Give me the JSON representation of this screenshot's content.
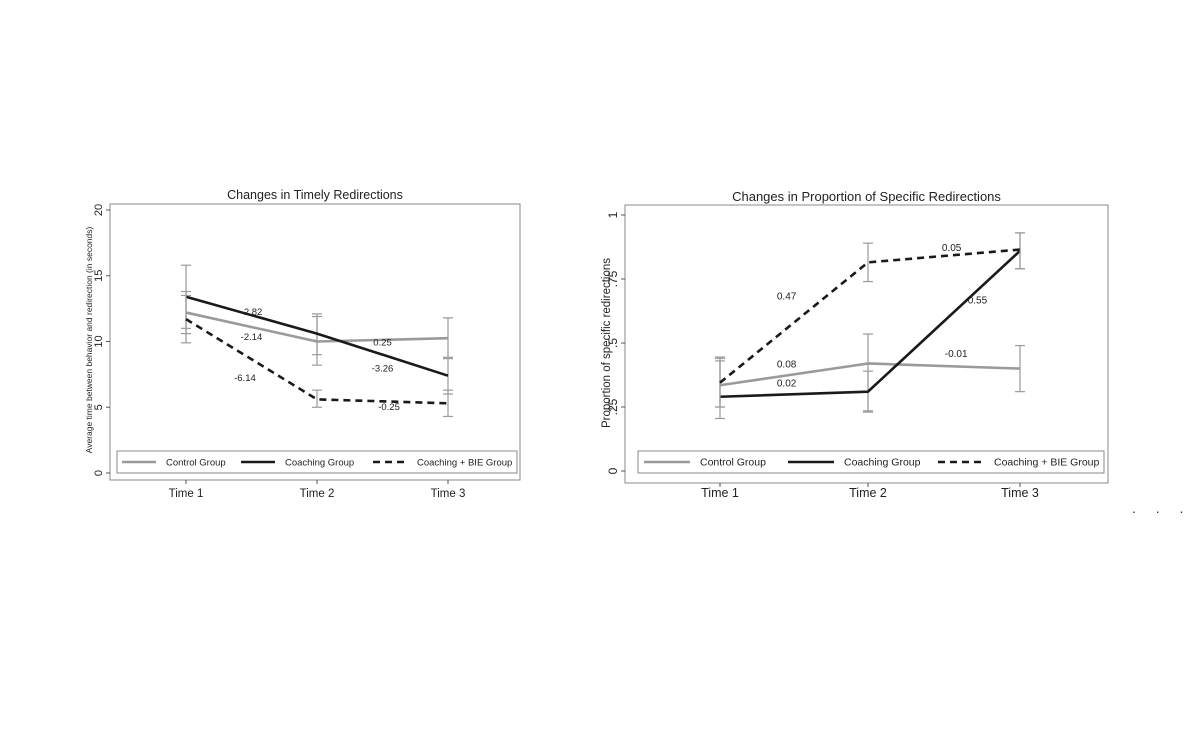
{
  "chart_data": [
    {
      "type": "line",
      "title": "Changes in Timely Redirections",
      "xlabel": "",
      "ylabel": "Average time between behavior and redirection (in seconds)",
      "categories": [
        "Time 1",
        "Time 2",
        "Time 3"
      ],
      "ylim": [
        0,
        20
      ],
      "yticks": [
        0,
        5,
        10,
        15,
        20
      ],
      "ytick_labels": [
        "0",
        "5",
        "10",
        "15",
        "20"
      ],
      "grid": false,
      "legend_position": "bottom",
      "series": [
        {
          "name": "Control Group",
          "values": [
            12.2,
            10.0,
            10.25
          ],
          "err_low": [
            10.6,
            8.2,
            8.7
          ],
          "err_high": [
            13.8,
            11.9,
            11.8
          ],
          "color": "#9a9a9a",
          "style": "solid"
        },
        {
          "name": "Coaching Group",
          "values": [
            13.4,
            10.6,
            7.4
          ],
          "err_low": [
            11.0,
            9.0,
            6.0
          ],
          "err_high": [
            15.8,
            12.1,
            8.8
          ],
          "color": "#1a1a1a",
          "style": "solid"
        },
        {
          "name": "Coaching + BIE Group",
          "values": [
            11.7,
            5.6,
            5.3
          ],
          "err_low": [
            9.9,
            5.0,
            4.3
          ],
          "err_high": [
            13.5,
            6.3,
            6.3
          ],
          "color": "#1a1a1a",
          "style": "dashed"
        }
      ],
      "annotations": [
        {
          "text": "-2.82",
          "x": 1.5,
          "y": 12.0
        },
        {
          "text": "-2.14",
          "x": 1.5,
          "y": 10.1
        },
        {
          "text": "0.25",
          "x": 2.5,
          "y": 9.7
        },
        {
          "text": "-3.26",
          "x": 2.5,
          "y": 7.7
        },
        {
          "text": "-6.14",
          "x": 1.45,
          "y": 7.0
        },
        {
          "text": "-0.25",
          "x": 2.55,
          "y": 4.8
        }
      ]
    },
    {
      "type": "line",
      "title": "Changes in Proportion of Specific Redirections",
      "xlabel": "",
      "ylabel": "Proportion of specific redirections",
      "categories": [
        "Time 1",
        "Time 2",
        "Time 3"
      ],
      "ylim": [
        0,
        1
      ],
      "yticks": [
        0,
        0.25,
        0.5,
        0.75,
        1
      ],
      "ytick_labels": [
        "0",
        ".25",
        ".5",
        ".75",
        "1"
      ],
      "grid": false,
      "legend_position": "bottom",
      "series": [
        {
          "name": "Control Group",
          "values": [
            0.335,
            0.42,
            0.4
          ],
          "err_low": [
            0.25,
            0.23,
            0.31
          ],
          "err_high": [
            0.44,
            0.535,
            0.49
          ],
          "color": "#9a9a9a",
          "style": "solid"
        },
        {
          "name": "Coaching Group",
          "values": [
            0.29,
            0.31,
            0.86
          ],
          "err_low": [
            0.205,
            0.235,
            0.79
          ],
          "err_high": [
            0.43,
            0.39,
            0.93
          ],
          "color": "#1a1a1a",
          "style": "solid"
        },
        {
          "name": "Coaching + BIE Group",
          "values": [
            0.345,
            0.815,
            0.865
          ],
          "err_low": [
            0.25,
            0.74,
            0.79
          ],
          "err_high": [
            0.445,
            0.89,
            0.93
          ],
          "color": "#1a1a1a",
          "style": "dashed"
        }
      ],
      "annotations": [
        {
          "text": "0.08",
          "x": 1.45,
          "y": 0.405
        },
        {
          "text": "0.02",
          "x": 1.45,
          "y": 0.33
        },
        {
          "text": "-0.01",
          "x": 2.58,
          "y": 0.445
        },
        {
          "text": "0.47",
          "x": 1.45,
          "y": 0.67
        },
        {
          "text": "0.05",
          "x": 2.55,
          "y": 0.86
        },
        {
          "text": "0.55",
          "x": 2.72,
          "y": 0.655
        }
      ]
    }
  ],
  "page_marks": {
    "trailing_dots": ". . ."
  }
}
